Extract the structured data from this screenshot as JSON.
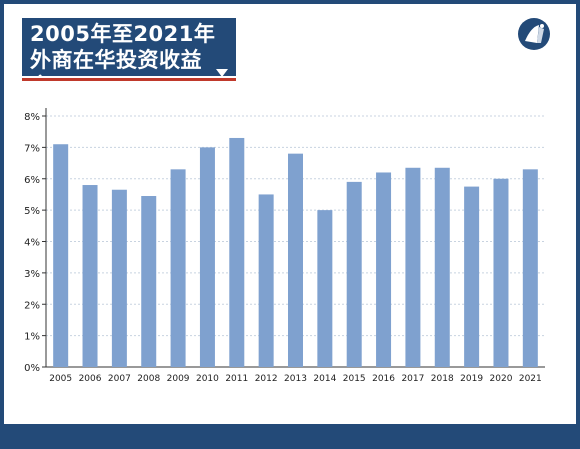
{
  "header": {
    "title_line1": "2005年至2021年",
    "title_line2": "外商在华投资收益率"
  },
  "logo": {
    "icon": "circular-logo-icon"
  },
  "colors": {
    "brand": "#234a78",
    "accent": "#c0392b",
    "bar": "#7fa1cf"
  },
  "chart_data": {
    "type": "bar",
    "categories": [
      "2005",
      "2006",
      "2007",
      "2008",
      "2009",
      "2010",
      "2011",
      "2012",
      "2013",
      "2014",
      "2015",
      "2016",
      "2017",
      "2018",
      "2019",
      "2020",
      "2021"
    ],
    "values": [
      7.1,
      5.8,
      5.65,
      5.45,
      6.3,
      7.0,
      7.3,
      5.5,
      6.8,
      5.0,
      5.9,
      6.2,
      6.35,
      6.35,
      5.75,
      6.0,
      6.3
    ],
    "yticks": [
      "0%",
      "1%",
      "2%",
      "3%",
      "4%",
      "5%",
      "6%",
      "7%",
      "8%"
    ],
    "ylim": [
      0,
      8
    ],
    "grid": true
  }
}
